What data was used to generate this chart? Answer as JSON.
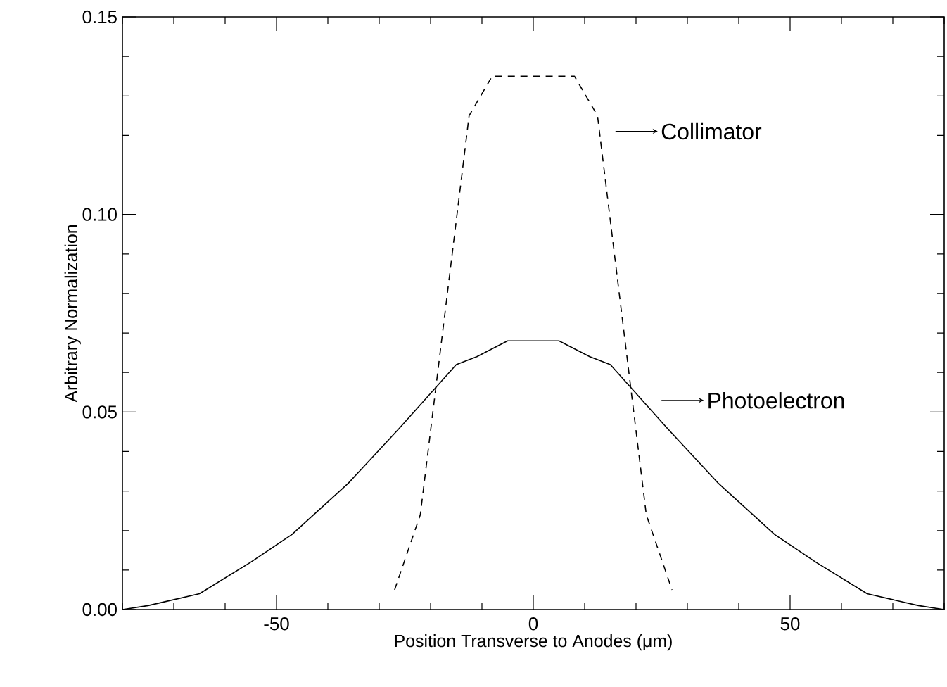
{
  "chart_data": {
    "type": "line",
    "xlabel": "Position Transverse to Anodes (μm)",
    "ylabel": "Arbitrary Normalization",
    "series": [
      {
        "color": "#000000",
        "line_style": "dashed",
        "x": [
          -27,
          -22,
          -12.5,
          -8,
          8,
          12.5,
          22,
          27
        ],
        "values": [
          0.005,
          0.024,
          0.125,
          0.135,
          0.135,
          0.125,
          0.024,
          0.005
        ]
      },
      {
        "color": "#000000",
        "line_style": "solid",
        "x": [
          -80,
          -75,
          -65,
          -55,
          -47,
          -36,
          -26,
          -15,
          -11,
          -5,
          5,
          11,
          15,
          26,
          36,
          47,
          55,
          65,
          75,
          80
        ],
        "values": [
          0.0,
          0.001,
          0.004,
          0.012,
          0.019,
          0.032,
          0.046,
          0.062,
          0.064,
          0.068,
          0.068,
          0.064,
          0.062,
          0.046,
          0.032,
          0.019,
          0.012,
          0.004,
          0.001,
          0.0
        ]
      }
    ],
    "annotations": [
      "Collimator",
      "Photoelectron"
    ],
    "xlim": [
      -80,
      80
    ],
    "ylim": [
      0,
      0.15
    ],
    "xticks": [
      {
        "value": -80,
        "label": null
      },
      {
        "value": -70,
        "label": null
      },
      {
        "value": -60,
        "label": null
      },
      -50,
      {
        "value": -40,
        "label": null
      },
      {
        "value": -30,
        "label": null
      },
      {
        "value": -20,
        "label": null
      },
      {
        "value": -10,
        "label": null
      },
      0,
      {
        "value": 10,
        "label": null
      },
      {
        "value": 20,
        "label": null
      },
      {
        "value": 30,
        "label": null
      },
      {
        "value": 40,
        "label": null
      },
      50,
      {
        "value": 60,
        "label": null
      },
      {
        "value": 70,
        "label": null
      },
      {
        "value": 80,
        "label": null
      }
    ],
    "yticks": [
      {
        "value": 0,
        "label": "0.00"
      },
      {
        "value": 0.01,
        "label": null
      },
      {
        "value": 0.02,
        "label": null
      },
      {
        "value": 0.03,
        "label": null
      },
      {
        "value": 0.04,
        "label": null
      },
      {
        "value": 0.05,
        "label": "0.05"
      },
      {
        "value": 0.06,
        "label": null
      },
      {
        "value": 0.07,
        "label": null
      },
      {
        "value": 0.08,
        "label": null
      },
      {
        "value": 0.09,
        "label": null
      },
      {
        "value": 0.1,
        "label": "0.10"
      },
      {
        "value": 0.11,
        "label": null
      },
      {
        "value": 0.12,
        "label": null
      },
      {
        "value": 0.13,
        "label": null
      },
      {
        "value": 0.14,
        "label": null
      },
      {
        "value": 0.15,
        "label": "0.15"
      }
    ],
    "grid": false
  }
}
